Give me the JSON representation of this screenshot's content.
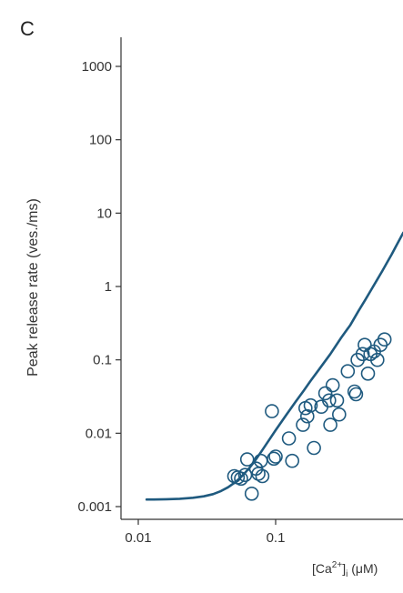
{
  "panel_label": "C",
  "chart_data": {
    "type": "scatter",
    "xscale": "log",
    "yscale": "log",
    "xlim": [
      0.0085,
      0.86
    ],
    "ylim": [
      0.00085,
      1500
    ],
    "ylabel": "Peak release rate (ves./ms)",
    "xlabel": "[Ca²⁺]ᵢ (μM)",
    "xlabel_parts": {
      "pre": "[Ca",
      "sup": "2+",
      "mid": "]",
      "sub": "i",
      "post": " (μM)"
    },
    "x_ticks": [
      {
        "value": 0.01,
        "label": "0.01"
      },
      {
        "value": 0.1,
        "label": "0.1"
      }
    ],
    "y_ticks": [
      {
        "value": 0.001,
        "label": "0.001"
      },
      {
        "value": 0.01,
        "label": "0.01"
      },
      {
        "value": 0.1,
        "label": "0.1"
      },
      {
        "value": 1,
        "label": "1"
      },
      {
        "value": 10,
        "label": "10"
      },
      {
        "value": 100,
        "label": "100"
      },
      {
        "value": 1000,
        "label": "1000"
      }
    ],
    "color": "#1f5a7f",
    "points": [
      [
        0.05,
        0.0026
      ],
      [
        0.053,
        0.0025
      ],
      [
        0.056,
        0.0024
      ],
      [
        0.06,
        0.0027
      ],
      [
        0.062,
        0.0044
      ],
      [
        0.067,
        0.0015
      ],
      [
        0.072,
        0.0033
      ],
      [
        0.075,
        0.0028
      ],
      [
        0.078,
        0.0042
      ],
      [
        0.08,
        0.0026
      ],
      [
        0.094,
        0.02
      ],
      [
        0.097,
        0.0045
      ],
      [
        0.1,
        0.0048
      ],
      [
        0.125,
        0.0085
      ],
      [
        0.132,
        0.0042
      ],
      [
        0.158,
        0.013
      ],
      [
        0.165,
        0.022
      ],
      [
        0.17,
        0.017
      ],
      [
        0.18,
        0.024
      ],
      [
        0.19,
        0.0063
      ],
      [
        0.215,
        0.023
      ],
      [
        0.23,
        0.035
      ],
      [
        0.245,
        0.028
      ],
      [
        0.25,
        0.013
      ],
      [
        0.26,
        0.045
      ],
      [
        0.28,
        0.028
      ],
      [
        0.29,
        0.018
      ],
      [
        0.335,
        0.07
      ],
      [
        0.375,
        0.037
      ],
      [
        0.385,
        0.034
      ],
      [
        0.395,
        0.1
      ],
      [
        0.43,
        0.12
      ],
      [
        0.445,
        0.16
      ],
      [
        0.47,
        0.065
      ],
      [
        0.49,
        0.12
      ],
      [
        0.52,
        0.13
      ],
      [
        0.55,
        0.1
      ],
      [
        0.58,
        0.16
      ],
      [
        0.62,
        0.19
      ]
    ],
    "fit_curve": {
      "type": "line",
      "x": [
        0.0115,
        0.013,
        0.016,
        0.02,
        0.025,
        0.03,
        0.035,
        0.04,
        0.045,
        0.05,
        0.055,
        0.06,
        0.065,
        0.07,
        0.08,
        0.09,
        0.1,
        0.12,
        0.14,
        0.16,
        0.18,
        0.2,
        0.25,
        0.3,
        0.35,
        0.4,
        0.45,
        0.5,
        0.55,
        0.6,
        0.65,
        0.7,
        0.75,
        0.8,
        0.85
      ],
      "y": [
        0.00125,
        0.00125,
        0.00126,
        0.00128,
        0.00132,
        0.00138,
        0.00148,
        0.00163,
        0.00183,
        0.0021,
        0.00245,
        0.0029,
        0.00343,
        0.0041,
        0.0059,
        0.0082,
        0.011,
        0.018,
        0.027,
        0.038,
        0.052,
        0.068,
        0.12,
        0.2,
        0.3,
        0.46,
        0.66,
        0.92,
        1.25,
        1.65,
        2.15,
        2.75,
        3.5,
        4.4,
        5.4
      ]
    }
  }
}
